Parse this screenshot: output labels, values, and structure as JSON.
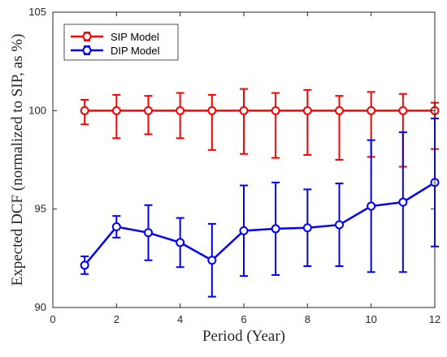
{
  "chart_data": {
    "type": "line",
    "title": "",
    "xlabel": "Period (Year)",
    "ylabel": "Expected DCF (normalized to SIP, as %)",
    "xlim": [
      0,
      12
    ],
    "ylim": [
      90,
      105
    ],
    "xticks": [
      0,
      2,
      4,
      6,
      8,
      10,
      12
    ],
    "yticks": [
      90,
      95,
      100,
      105
    ],
    "grid": false,
    "legend_position": "top-left",
    "x": [
      1,
      2,
      3,
      4,
      5,
      6,
      7,
      8,
      9,
      10,
      11,
      12
    ],
    "series": [
      {
        "name": "SIP Model",
        "color": "#ff0000",
        "marker": "circle",
        "values": [
          100,
          100,
          100,
          100,
          100,
          100,
          100,
          100,
          100,
          100,
          100,
          100
        ],
        "err_low": [
          0.7,
          1.4,
          1.2,
          1.4,
          2.0,
          2.2,
          2.4,
          2.25,
          2.5,
          2.35,
          2.85,
          1.95
        ],
        "err_high": [
          0.55,
          0.8,
          0.75,
          0.9,
          0.8,
          1.1,
          0.9,
          1.05,
          0.75,
          0.95,
          0.85,
          0.4
        ]
      },
      {
        "name": "DIP Model",
        "color": "#0000ff",
        "marker": "circle",
        "values": [
          92.15,
          94.1,
          93.8,
          93.3,
          92.4,
          93.9,
          94.0,
          94.05,
          94.2,
          95.15,
          95.35,
          96.35
        ],
        "err_low": [
          0.45,
          0.55,
          1.4,
          1.25,
          1.85,
          2.3,
          2.35,
          1.95,
          2.1,
          3.35,
          3.55,
          3.25
        ],
        "err_high": [
          0.45,
          0.55,
          1.4,
          1.25,
          1.85,
          2.3,
          2.35,
          1.95,
          2.1,
          3.35,
          3.55,
          3.25
        ]
      }
    ]
  }
}
